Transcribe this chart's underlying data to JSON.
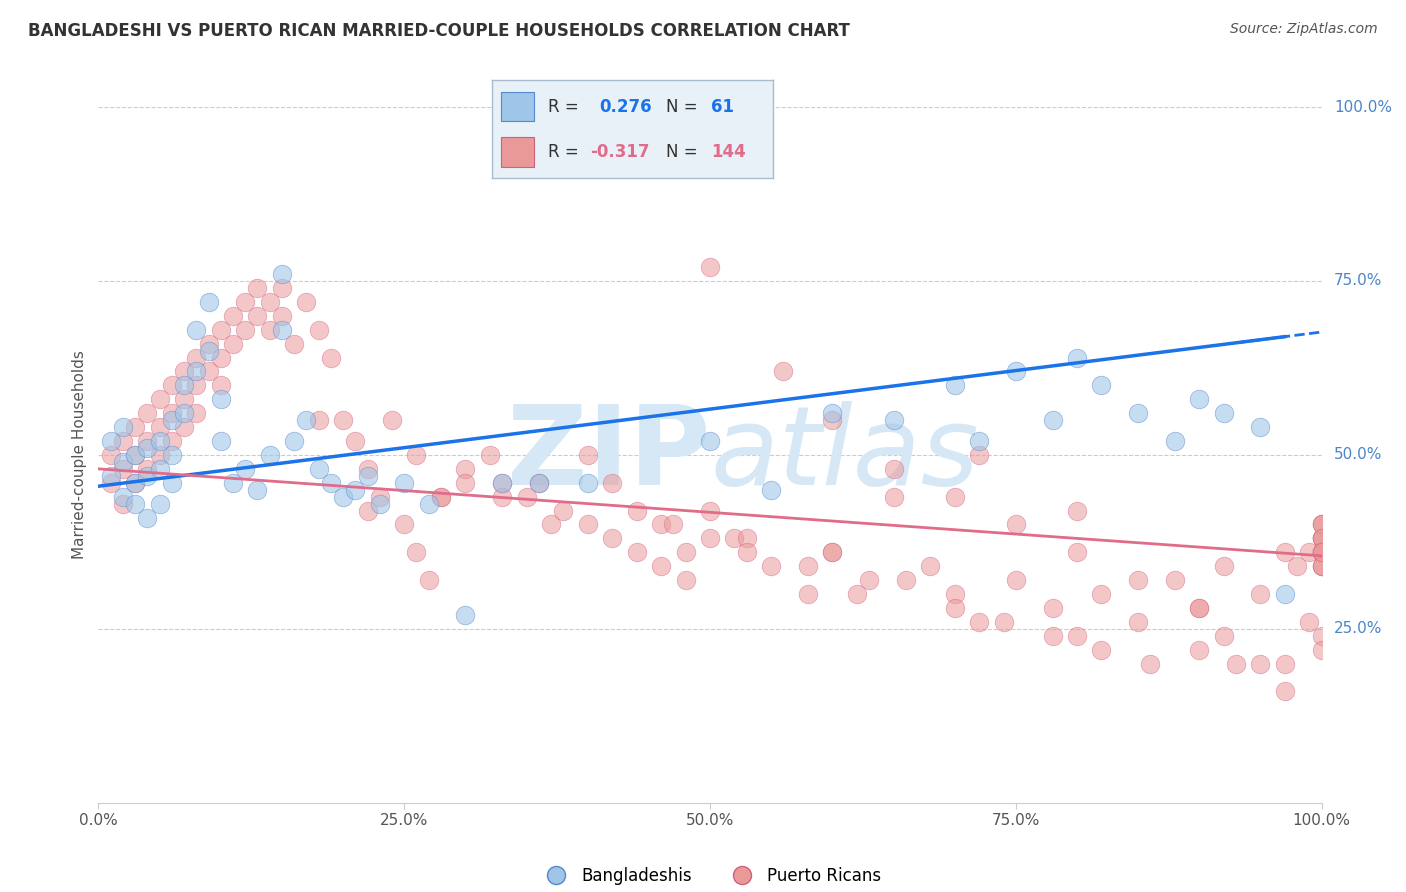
{
  "title": "BANGLADESHI VS PUERTO RICAN MARRIED-COUPLE HOUSEHOLDS CORRELATION CHART",
  "source": "Source: ZipAtlas.com",
  "ylabel": "Married-couple Households",
  "r_bangladeshi": 0.276,
  "n_bangladeshi": 61,
  "r_puerto_rican": -0.317,
  "n_puerto_rican": 144,
  "xlim": [
    0.0,
    1.0
  ],
  "ylim": [
    0.0,
    1.0
  ],
  "xtick_labels": [
    "0.0%",
    "25.0%",
    "50.0%",
    "75.0%",
    "100.0%"
  ],
  "xtick_positions": [
    0.0,
    0.25,
    0.5,
    0.75,
    1.0
  ],
  "ytick_labels_right": [
    "100.0%",
    "75.0%",
    "50.0%",
    "25.0%"
  ],
  "ytick_positions_right": [
    1.0,
    0.75,
    0.5,
    0.25
  ],
  "color_bangladeshi": "#9fc5e8",
  "color_puerto_rican": "#ea9999",
  "line_color_bangladeshi": "#1a73e8",
  "line_color_puerto_rican": "#e06c8a",
  "background_color": "#ffffff",
  "grid_color": "#cccccc",
  "watermark_color": "#d6e8f5",
  "legend_box_color": "#ddeeff",
  "legend_border_color": "#aaccee",
  "bangladeshi_x": [
    0.01,
    0.01,
    0.02,
    0.02,
    0.02,
    0.03,
    0.03,
    0.03,
    0.04,
    0.04,
    0.04,
    0.05,
    0.05,
    0.05,
    0.06,
    0.06,
    0.06,
    0.07,
    0.07,
    0.08,
    0.08,
    0.09,
    0.09,
    0.1,
    0.1,
    0.11,
    0.12,
    0.13,
    0.14,
    0.15,
    0.15,
    0.16,
    0.17,
    0.18,
    0.19,
    0.2,
    0.21,
    0.22,
    0.23,
    0.25,
    0.27,
    0.3,
    0.33,
    0.36,
    0.4,
    0.5,
    0.55,
    0.6,
    0.65,
    0.7,
    0.72,
    0.75,
    0.78,
    0.8,
    0.82,
    0.85,
    0.88,
    0.9,
    0.92,
    0.95,
    0.97
  ],
  "bangladeshi_y": [
    0.47,
    0.52,
    0.49,
    0.54,
    0.44,
    0.5,
    0.46,
    0.43,
    0.51,
    0.47,
    0.41,
    0.52,
    0.48,
    0.43,
    0.55,
    0.5,
    0.46,
    0.6,
    0.56,
    0.62,
    0.68,
    0.72,
    0.65,
    0.58,
    0.52,
    0.46,
    0.48,
    0.45,
    0.5,
    0.76,
    0.68,
    0.52,
    0.55,
    0.48,
    0.46,
    0.44,
    0.45,
    0.47,
    0.43,
    0.46,
    0.43,
    0.27,
    0.46,
    0.46,
    0.46,
    0.52,
    0.45,
    0.56,
    0.55,
    0.6,
    0.52,
    0.62,
    0.55,
    0.64,
    0.6,
    0.56,
    0.52,
    0.58,
    0.56,
    0.54,
    0.3
  ],
  "puerto_rican_x": [
    0.01,
    0.01,
    0.02,
    0.02,
    0.02,
    0.03,
    0.03,
    0.03,
    0.04,
    0.04,
    0.04,
    0.05,
    0.05,
    0.05,
    0.06,
    0.06,
    0.06,
    0.07,
    0.07,
    0.07,
    0.08,
    0.08,
    0.08,
    0.09,
    0.09,
    0.1,
    0.1,
    0.1,
    0.11,
    0.11,
    0.12,
    0.12,
    0.13,
    0.13,
    0.14,
    0.14,
    0.15,
    0.15,
    0.16,
    0.17,
    0.18,
    0.19,
    0.2,
    0.21,
    0.22,
    0.23,
    0.24,
    0.25,
    0.26,
    0.27,
    0.28,
    0.3,
    0.32,
    0.33,
    0.35,
    0.37,
    0.4,
    0.42,
    0.44,
    0.46,
    0.48,
    0.5,
    0.52,
    0.55,
    0.58,
    0.6,
    0.63,
    0.65,
    0.68,
    0.7,
    0.72,
    0.75,
    0.78,
    0.8,
    0.82,
    0.85,
    0.88,
    0.9,
    0.92,
    0.95,
    0.97,
    0.98,
    0.99,
    1.0,
    1.0,
    1.0,
    1.0,
    1.0,
    1.0,
    1.0,
    1.0,
    1.0,
    1.0,
    1.0,
    1.0,
    1.0,
    1.0,
    0.47,
    0.53,
    0.6,
    0.33,
    0.36,
    0.38,
    0.4,
    0.42,
    0.44,
    0.46,
    0.48,
    0.5,
    0.53,
    0.58,
    0.62,
    0.66,
    0.7,
    0.74,
    0.78,
    0.82,
    0.86,
    0.9,
    0.93,
    0.97,
    0.65,
    0.7,
    0.75,
    0.8,
    0.85,
    0.9,
    0.92,
    0.95,
    0.97,
    0.99,
    1.0,
    1.0,
    1.0,
    0.26,
    0.3,
    0.22,
    0.18,
    0.5,
    0.56,
    0.6,
    0.28,
    0.72,
    0.8
  ],
  "puerto_rican_y": [
    0.5,
    0.46,
    0.52,
    0.48,
    0.43,
    0.54,
    0.5,
    0.46,
    0.56,
    0.52,
    0.48,
    0.58,
    0.54,
    0.5,
    0.6,
    0.56,
    0.52,
    0.62,
    0.58,
    0.54,
    0.64,
    0.6,
    0.56,
    0.66,
    0.62,
    0.68,
    0.64,
    0.6,
    0.7,
    0.66,
    0.72,
    0.68,
    0.74,
    0.7,
    0.72,
    0.68,
    0.74,
    0.7,
    0.66,
    0.72,
    0.68,
    0.64,
    0.55,
    0.52,
    0.48,
    0.44,
    0.55,
    0.4,
    0.36,
    0.32,
    0.44,
    0.48,
    0.5,
    0.46,
    0.44,
    0.4,
    0.5,
    0.46,
    0.42,
    0.4,
    0.36,
    0.42,
    0.38,
    0.34,
    0.3,
    0.36,
    0.32,
    0.44,
    0.34,
    0.3,
    0.26,
    0.32,
    0.28,
    0.24,
    0.3,
    0.26,
    0.32,
    0.28,
    0.34,
    0.3,
    0.36,
    0.34,
    0.36,
    0.38,
    0.36,
    0.34,
    0.4,
    0.38,
    0.36,
    0.4,
    0.38,
    0.36,
    0.34,
    0.4,
    0.38,
    0.36,
    0.34,
    0.4,
    0.38,
    0.36,
    0.44,
    0.46,
    0.42,
    0.4,
    0.38,
    0.36,
    0.34,
    0.32,
    0.38,
    0.36,
    0.34,
    0.3,
    0.32,
    0.28,
    0.26,
    0.24,
    0.22,
    0.2,
    0.22,
    0.2,
    0.2,
    0.48,
    0.44,
    0.4,
    0.36,
    0.32,
    0.28,
    0.24,
    0.2,
    0.16,
    0.26,
    0.24,
    0.22,
    0.36,
    0.5,
    0.46,
    0.42,
    0.55,
    0.77,
    0.62,
    0.55,
    0.44,
    0.5,
    0.42
  ]
}
